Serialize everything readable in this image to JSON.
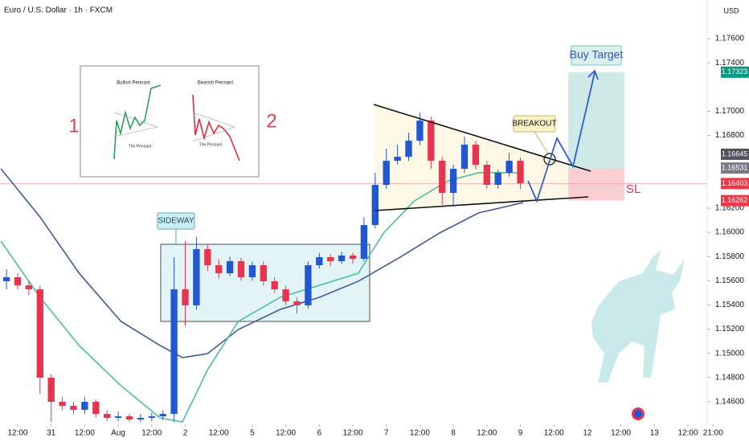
{
  "chart_data": {
    "type": "candlestick",
    "title": "Euro / U.S. Dollar · 1h · FXCM",
    "currency": "USD",
    "candles": {
      "x": [
        -4,
        0,
        4,
        8,
        12,
        16,
        20,
        24,
        28,
        32,
        36,
        40,
        44,
        48,
        52,
        56,
        60,
        64,
        68,
        72,
        76,
        80,
        84,
        88,
        92,
        96,
        100,
        104,
        108,
        112,
        116,
        120,
        124,
        128,
        132,
        136,
        140,
        144,
        148,
        152,
        156,
        160,
        164,
        168,
        172,
        176,
        180
      ],
      "open": [
        1.15596,
        1.15629,
        1.15562,
        1.15529,
        1.14799,
        1.146,
        1.14567,
        1.14534,
        1.146,
        1.145,
        1.14467,
        1.1448,
        1.14454,
        1.14467,
        1.1448,
        1.145,
        1.15529,
        1.15397,
        1.15861,
        1.15728,
        1.15662,
        1.15762,
        1.15629,
        1.15728,
        1.15596,
        1.15529,
        1.1543,
        1.15397,
        1.15728,
        1.15795,
        1.15762,
        1.15808,
        1.15781,
        1.1606,
        1.16392,
        1.16591,
        1.16624,
        1.16757,
        1.16923,
        1.16591,
        1.16326,
        1.16525,
        1.16724,
        1.16558,
        1.16392,
        1.16492,
        1.16591
      ],
      "high": [
        1.15695,
        1.15662,
        1.156,
        1.1556,
        1.1483,
        1.1464,
        1.146,
        1.1464,
        1.1462,
        1.1453,
        1.1452,
        1.145,
        1.145,
        1.1451,
        1.1453,
        1.15795,
        1.15927,
        1.15961,
        1.159,
        1.1578,
        1.158,
        1.1579,
        1.1576,
        1.1576,
        1.1563,
        1.1556,
        1.1546,
        1.1576,
        1.1583,
        1.1582,
        1.1584,
        1.1583,
        1.16127,
        1.16492,
        1.16691,
        1.16724,
        1.16823,
        1.16989,
        1.16956,
        1.16624,
        1.1656,
        1.1679,
        1.16757,
        1.1659,
        1.1652,
        1.16658,
        1.1662
      ],
      "low": [
        1.15529,
        1.15529,
        1.1548,
        1.14666,
        1.14434,
        1.1453,
        1.145,
        1.145,
        1.1447,
        1.1444,
        1.1444,
        1.14434,
        1.14434,
        1.1444,
        1.1445,
        1.14434,
        1.15231,
        1.1536,
        1.1568,
        1.1562,
        1.1564,
        1.156,
        1.156,
        1.1556,
        1.155,
        1.154,
        1.1533,
        1.1537,
        1.157,
        1.1572,
        1.1574,
        1.1574,
        1.1576,
        1.1603,
        1.1636,
        1.1656,
        1.1659,
        1.1672,
        1.16525,
        1.16226,
        1.16226,
        1.1649,
        1.1652,
        1.1636,
        1.1636,
        1.1646,
        1.16359
      ],
      "close": [
        1.15629,
        1.15562,
        1.15529,
        1.14799,
        1.146,
        1.14567,
        1.14534,
        1.146,
        1.145,
        1.14467,
        1.1448,
        1.14454,
        1.14467,
        1.1448,
        1.145,
        1.15529,
        1.15397,
        1.15861,
        1.15728,
        1.15662,
        1.15762,
        1.15629,
        1.15728,
        1.15596,
        1.15529,
        1.1543,
        1.15397,
        1.15728,
        1.15795,
        1.15762,
        1.15808,
        1.15781,
        1.1606,
        1.16392,
        1.16591,
        1.16624,
        1.16757,
        1.16923,
        1.16591,
        1.16326,
        1.16525,
        1.16724,
        1.16558,
        1.16392,
        1.16492,
        1.16591,
        1.16405
      ],
      "up_color": "#2157d3",
      "down_color": "#e8344e"
    },
    "lines": [
      {
        "color": "#3f5a9c",
        "x": [
          -6,
          8,
          22,
          37,
          51,
          59,
          68,
          79,
          94,
          108,
          122,
          137,
          151,
          165,
          181
        ],
        "values": [
          1.16525,
          1.16127,
          1.15662,
          1.15264,
          1.15065,
          1.14965,
          1.14998,
          1.15197,
          1.15363,
          1.15463,
          1.15596,
          1.15795,
          1.15994,
          1.1616,
          1.16246
        ]
      },
      {
        "color": "#4cbf9c",
        "x": [
          -6,
          8,
          22,
          37,
          51,
          59,
          68,
          79,
          94,
          108,
          122,
          131,
          142,
          154,
          165,
          181
        ],
        "values": [
          1.15927,
          1.15463,
          1.15065,
          1.14733,
          1.14467,
          1.14434,
          1.14865,
          1.15264,
          1.15463,
          1.15562,
          1.15662,
          1.15994,
          1.16259,
          1.16425,
          1.16492,
          1.16492
        ]
      }
    ],
    "ylim": [
      1.14434,
      1.17919
    ],
    "xlim": [
      -6.33,
      246.9
    ],
    "yticks": [
      {
        "value": 1.176,
        "label": "1.17600"
      },
      {
        "value": 1.174,
        "label": "1.17400"
      },
      {
        "value": 1.17,
        "label": "1.17000"
      },
      {
        "value": 1.168,
        "label": "1.16800"
      },
      {
        "value": 1.162,
        "label": "1.16200"
      },
      {
        "value": 1.16,
        "label": "1.16000"
      },
      {
        "value": 1.158,
        "label": "1.15800"
      },
      {
        "value": 1.156,
        "label": "1.15600"
      },
      {
        "value": 1.154,
        "label": "1.15400"
      },
      {
        "value": 1.152,
        "label": "1.15200"
      },
      {
        "value": 1.15,
        "label": "1.15000"
      },
      {
        "value": 1.148,
        "label": "1.14800"
      },
      {
        "value": 1.146,
        "label": "1.14600"
      }
    ],
    "xticks": [
      {
        "value": 0,
        "label": "12:00"
      },
      {
        "value": 12,
        "label": "31"
      },
      {
        "value": 24,
        "label": "12:00"
      },
      {
        "value": 36,
        "label": "Aug"
      },
      {
        "value": 48,
        "label": "12:00"
      },
      {
        "value": 60,
        "label": "2"
      },
      {
        "value": 72,
        "label": "12:00"
      },
      {
        "value": 84,
        "label": "5"
      },
      {
        "value": 96,
        "label": "12:00"
      },
      {
        "value": 108,
        "label": "6"
      },
      {
        "value": 120,
        "label": "12:00"
      },
      {
        "value": 132,
        "label": "7"
      },
      {
        "value": 144,
        "label": "12:00"
      },
      {
        "value": 156,
        "label": "8"
      },
      {
        "value": 168,
        "label": "12:00"
      },
      {
        "value": 180,
        "label": "9"
      },
      {
        "value": 192,
        "label": "12:00"
      },
      {
        "value": 204,
        "label": "12"
      },
      {
        "value": 216,
        "label": "12:00"
      },
      {
        "value": 228,
        "label": "13"
      },
      {
        "value": 240,
        "label": "12:00"
      },
      {
        "value": 249,
        "label": "21:00"
      }
    ],
    "position": {
      "target": 1.17323,
      "entry": 1.16531,
      "stop": 1.16262
    },
    "last_price": 1.16403,
    "marker_price": 1.16645,
    "annotations": {
      "sideway": "SIDEWAY",
      "breakout": "BREAKOUT",
      "buy_target": "Buy Target",
      "sl": "SL",
      "one": "1",
      "two": "2"
    },
    "inset": {
      "bullish": "Bullish Pennant",
      "bearish": "Bearish Pennant",
      "pennant_1": "The Pennant",
      "pennant_2": "The Pennant"
    }
  }
}
